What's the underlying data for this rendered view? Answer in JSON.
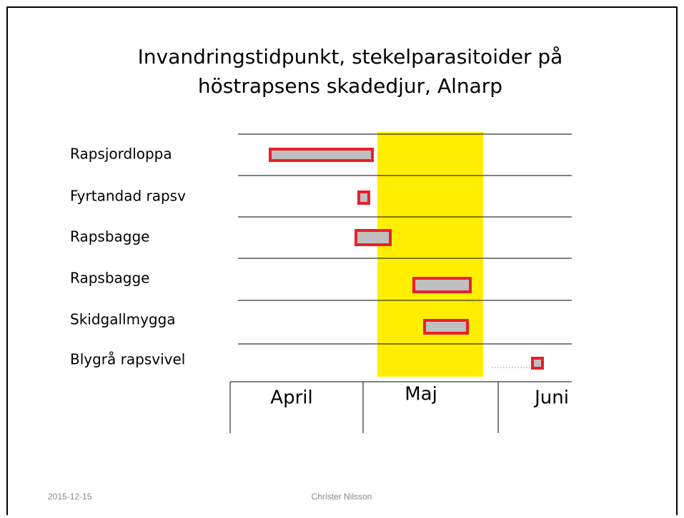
{
  "slide": {
    "title_lines": [
      "Invandringstidpunkt, stekelparasitoider på",
      "höstrapsens skadedjur, Alnarp"
    ],
    "rows": [
      "Rapsjordloppa",
      "Fyrtandad rapsv",
      "Rapsbagge",
      "Rapsbagge",
      "Skidgallmygga",
      "Blygrå rapsvivel"
    ],
    "months": [
      "April",
      "Maj",
      "Juni"
    ],
    "footer": {
      "date": "2015-12-15",
      "author": "Christer Nilsson"
    }
  }
}
